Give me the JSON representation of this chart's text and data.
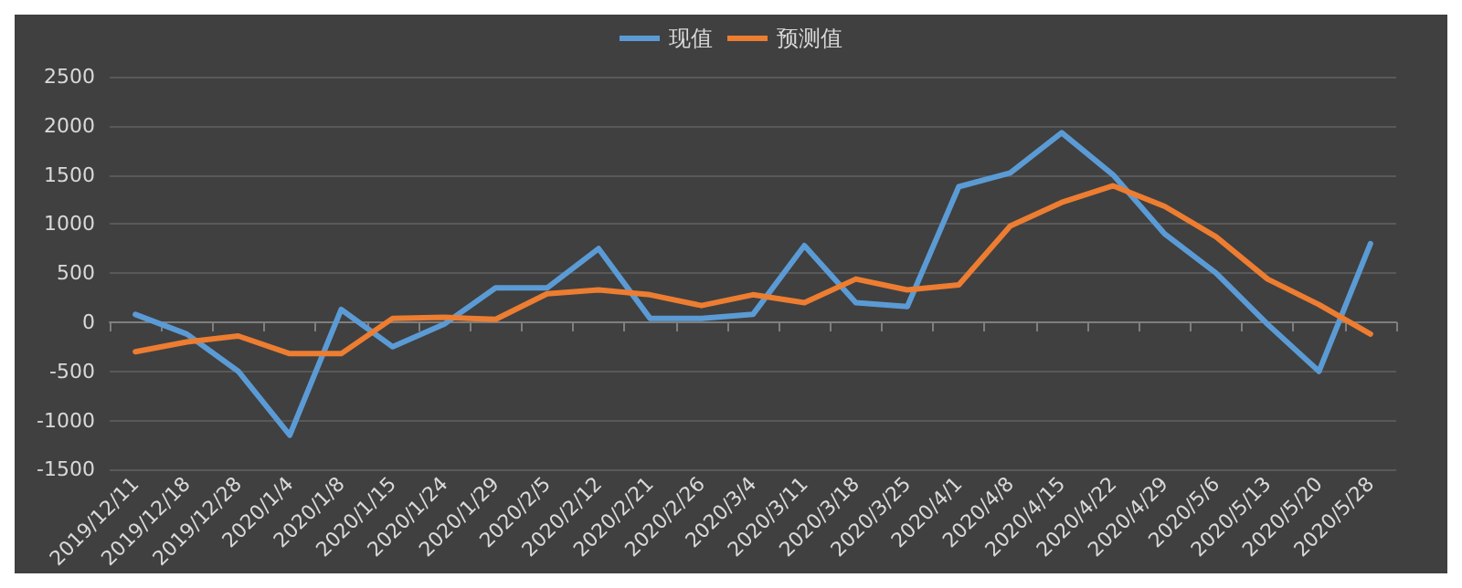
{
  "chart_data": {
    "type": "line",
    "categories": [
      "2019/12/11",
      "2019/12/18",
      "2019/12/28",
      "2020/1/4",
      "2020/1/8",
      "2020/1/15",
      "2020/1/24",
      "2020/1/29",
      "2020/2/5",
      "2020/2/12",
      "2020/2/21",
      "2020/2/26",
      "2020/3/4",
      "2020/3/11",
      "2020/3/18",
      "2020/3/25",
      "2020/4/1",
      "2020/4/8",
      "2020/4/15",
      "2020/4/22",
      "2020/4/29",
      "2020/5/6",
      "2020/5/13",
      "2020/5/20",
      "2020/5/28"
    ],
    "series": [
      {
        "name": "现值",
        "color": "#5b9bd5",
        "values": [
          80,
          -120,
          -500,
          -1150,
          130,
          -250,
          -20,
          350,
          350,
          750,
          40,
          40,
          80,
          780,
          200,
          160,
          1380,
          1520,
          1930,
          1500,
          900,
          500,
          -20,
          -500,
          800
        ]
      },
      {
        "name": "预测值",
        "color": "#ed7d31",
        "values": [
          -300,
          -200,
          -140,
          -320,
          -320,
          40,
          50,
          30,
          290,
          330,
          280,
          170,
          280,
          200,
          440,
          330,
          380,
          980,
          1220,
          1390,
          1180,
          870,
          440,
          180,
          -120
        ]
      }
    ],
    "ylim": [
      -1500,
      2500
    ],
    "yticks": [
      -1500,
      -1000,
      -500,
      0,
      500,
      1000,
      1500,
      2000,
      2500
    ],
    "grid": "y",
    "legend": "top",
    "marker": "none",
    "line_style": "solid"
  }
}
